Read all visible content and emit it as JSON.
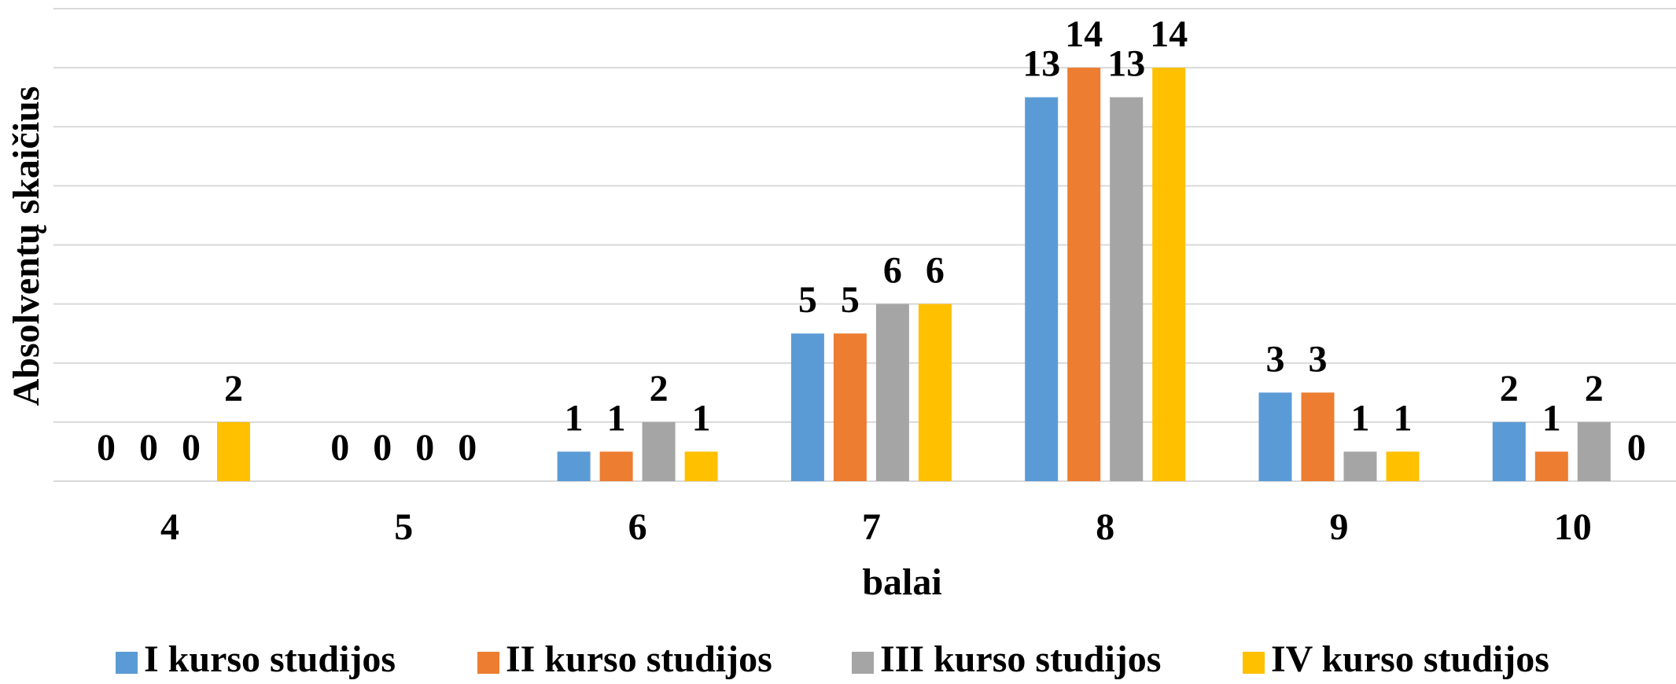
{
  "chart_data": {
    "type": "bar",
    "categories": [
      "4",
      "5",
      "6",
      "7",
      "8",
      "9",
      "10"
    ],
    "series": [
      {
        "name": "I kurso studijos",
        "color": "#5b9bd5",
        "values": [
          0,
          0,
          1,
          5,
          13,
          3,
          2
        ]
      },
      {
        "name": "II kurso studijos",
        "color": "#ed7d31",
        "values": [
          0,
          0,
          1,
          5,
          14,
          3,
          1
        ]
      },
      {
        "name": "III kurso studijos",
        "color": "#a5a5a5",
        "values": [
          0,
          0,
          2,
          6,
          13,
          1,
          2
        ]
      },
      {
        "name": "IV kurso studijos",
        "color": "#ffc000",
        "values": [
          2,
          0,
          1,
          6,
          14,
          1,
          0
        ]
      }
    ],
    "xlabel": "balai",
    "ylabel": "Absolventų skaičius",
    "ylim": [
      0,
      16
    ],
    "yticks": [
      0,
      2,
      4,
      6,
      8,
      10,
      12,
      14,
      16
    ],
    "grid": true,
    "legend": "bottom"
  }
}
